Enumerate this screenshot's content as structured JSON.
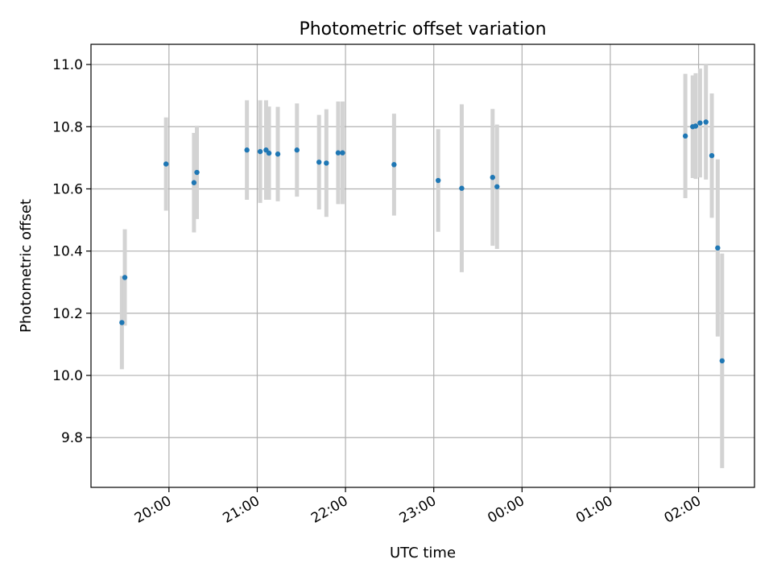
{
  "chart_data": {
    "type": "scatter",
    "title": "Photometric offset variation",
    "xlabel": "UTC time",
    "ylabel": "Photometric offset",
    "xlim": [
      "19:07",
      "02:38"
    ],
    "ylim": [
      9.64,
      11.065
    ],
    "x_ticks": [
      "20:00",
      "21:00",
      "22:00",
      "23:00",
      "00:00",
      "01:00",
      "02:00"
    ],
    "y_ticks": [
      "9.8",
      "10.0",
      "10.2",
      "10.4",
      "10.6",
      "10.8",
      "11.0"
    ],
    "grid": true,
    "colors": {
      "point": "#1f77b4",
      "errorbar": "#d3d3d3",
      "grid": "#b0b0b0"
    },
    "points": [
      {
        "t": "19:28",
        "y": 10.17,
        "err": 0.15
      },
      {
        "t": "19:30",
        "y": 10.315,
        "err": 0.155
      },
      {
        "t": "19:58",
        "y": 10.68,
        "err": 0.15
      },
      {
        "t": "20:17",
        "y": 10.62,
        "err": 0.16
      },
      {
        "t": "20:19",
        "y": 10.653,
        "err": 0.15
      },
      {
        "t": "20:53",
        "y": 10.725,
        "err": 0.16
      },
      {
        "t": "21:02",
        "y": 10.72,
        "err": 0.165
      },
      {
        "t": "21:06",
        "y": 10.725,
        "err": 0.16
      },
      {
        "t": "21:08",
        "y": 10.715,
        "err": 0.15
      },
      {
        "t": "21:14",
        "y": 10.712,
        "err": 0.152
      },
      {
        "t": "21:27",
        "y": 10.725,
        "err": 0.15
      },
      {
        "t": "21:42",
        "y": 10.686,
        "err": 0.152
      },
      {
        "t": "21:47",
        "y": 10.683,
        "err": 0.173
      },
      {
        "t": "21:55",
        "y": 10.716,
        "err": 0.165
      },
      {
        "t": "21:58",
        "y": 10.716,
        "err": 0.165
      },
      {
        "t": "22:33",
        "y": 10.678,
        "err": 0.164
      },
      {
        "t": "23:03",
        "y": 10.627,
        "err": 0.165
      },
      {
        "t": "23:19",
        "y": 10.602,
        "err": 0.27
      },
      {
        "t": "23:40",
        "y": 10.637,
        "err": 0.22
      },
      {
        "t": "23:43",
        "y": 10.607,
        "err": 0.2
      },
      {
        "t": "01:51",
        "y": 10.77,
        "err": 0.2
      },
      {
        "t": "01:56",
        "y": 10.8,
        "err": 0.165
      },
      {
        "t": "01:58",
        "y": 10.802,
        "err": 0.17
      },
      {
        "t": "02:01",
        "y": 10.812,
        "err": 0.175
      },
      {
        "t": "02:05",
        "y": 10.815,
        "err": 0.185
      },
      {
        "t": "02:09",
        "y": 10.707,
        "err": 0.2
      },
      {
        "t": "02:13",
        "y": 10.41,
        "err": 0.285
      },
      {
        "t": "02:16",
        "y": 10.047,
        "err": 0.345
      }
    ]
  }
}
